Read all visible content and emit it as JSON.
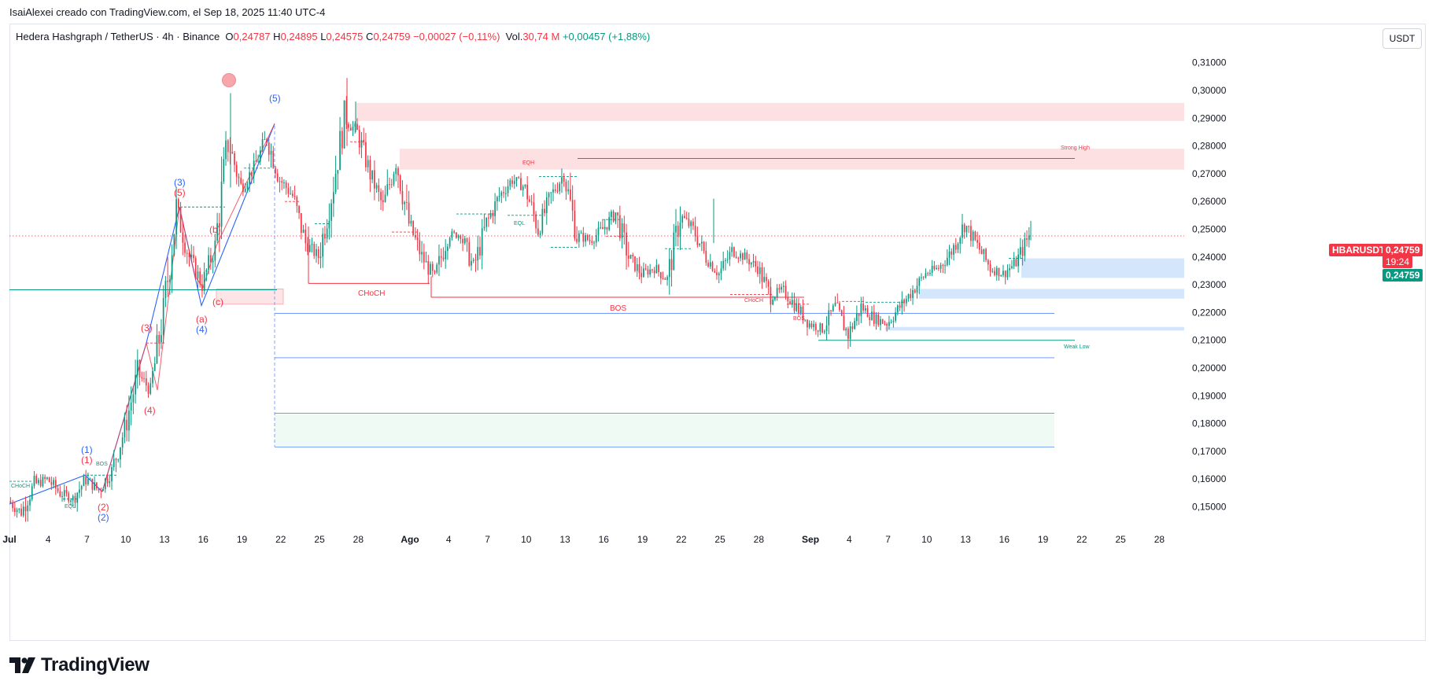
{
  "header": {
    "credit": "IsaiAlexei creado con TradingView.com, el Sep 18, 2025 11:40 UTC-4"
  },
  "legend": {
    "symbol": "Hedera Hashgraph / TetherUS · 4h · Binance",
    "open_label": "O",
    "open": "0,24787",
    "high_label": "H",
    "high": "0,24895",
    "low_label": "L",
    "low": "0,24575",
    "close_label": "C",
    "close": "0,24759",
    "change": "−0,00027 (−0,11%)",
    "vol_label": "Vol.",
    "vol": "30,74 M",
    "extra_change": "+0,00457 (+1,88%)"
  },
  "currency_button": "USDT",
  "price_tags": {
    "symbol_tag": "HBARUSDT",
    "last_price": "0,24759",
    "countdown": "19:24",
    "bid_price": "0,24759"
  },
  "brand": {
    "name": "TradingView"
  },
  "colors": {
    "up": "#089981",
    "down": "#f23645",
    "blue": "#2962ff",
    "supply_zone": "#fccbcd",
    "demand_zone": "#bbd9fb",
    "target_zone": "#e8f7ee"
  },
  "chart_data": {
    "type": "candlestick",
    "ylim": [
      0.14,
      0.318
    ],
    "y_ticks": [
      "0,31000",
      "0,30000",
      "0,29000",
      "0,28000",
      "0,27000",
      "0,26000",
      "0,25000",
      "0,24000",
      "0,23000",
      "0,22000",
      "0,21000",
      "0,20000",
      "0,19000",
      "0,18000",
      "0,17000",
      "0,16000",
      "0,15000"
    ],
    "x_ticks": [
      "Jul",
      "4",
      "7",
      "10",
      "13",
      "16",
      "19",
      "22",
      "25",
      "28",
      "Ago",
      "4",
      "7",
      "10",
      "13",
      "16",
      "19",
      "22",
      "25",
      "28",
      "Sep",
      "4",
      "7",
      "10",
      "13",
      "16",
      "19",
      "22",
      "25",
      "28"
    ],
    "approx_close_path": [
      [
        "Jul 1",
        0.152
      ],
      [
        "Jul 2",
        0.148
      ],
      [
        "Jul 3",
        0.158
      ],
      [
        "Jul 4",
        0.16
      ],
      [
        "Jul 5",
        0.155
      ],
      [
        "Jul 6",
        0.153
      ],
      [
        "Jul 7",
        0.16
      ],
      [
        "Jul 8",
        0.156
      ],
      [
        "Jul 9",
        0.163
      ],
      [
        "Jul 10",
        0.178
      ],
      [
        "Jul 11",
        0.198
      ],
      [
        "Jul 12",
        0.192
      ],
      [
        "Jul 13",
        0.22
      ],
      [
        "Jul 14",
        0.257
      ],
      [
        "Jul 15",
        0.24
      ],
      [
        "Jul 16",
        0.23
      ],
      [
        "Jul 17",
        0.244
      ],
      [
        "Jul 18",
        0.282
      ],
      [
        "Jul 19",
        0.265
      ],
      [
        "Jul 20",
        0.272
      ],
      [
        "Jul 21",
        0.283
      ],
      [
        "Jul 22",
        0.268
      ],
      [
        "Jul 23",
        0.262
      ],
      [
        "Jul 24",
        0.245
      ],
      [
        "Jul 25",
        0.24
      ],
      [
        "Jul 26",
        0.262
      ],
      [
        "Jul 27",
        0.29
      ],
      [
        "Jul 28",
        0.285
      ],
      [
        "Jul 29",
        0.27
      ],
      [
        "Jul 30",
        0.258
      ],
      [
        "Jul 31",
        0.275
      ],
      [
        "Ago 1",
        0.252
      ],
      [
        "Ago 2",
        0.24
      ],
      [
        "Ago 3",
        0.232
      ],
      [
        "Ago 4",
        0.248
      ],
      [
        "Ago 5",
        0.248
      ],
      [
        "Ago 6",
        0.236
      ],
      [
        "Ago 7",
        0.252
      ],
      [
        "Ago 8",
        0.262
      ],
      [
        "Ago 9",
        0.268
      ],
      [
        "Ago 10",
        0.265
      ],
      [
        "Ago 11",
        0.25
      ],
      [
        "Ago 12",
        0.262
      ],
      [
        "Ago 13",
        0.27
      ],
      [
        "Ago 14",
        0.248
      ],
      [
        "Ago 15",
        0.246
      ],
      [
        "Ago 16",
        0.25
      ],
      [
        "Ago 17",
        0.256
      ],
      [
        "Ago 18",
        0.24
      ],
      [
        "Ago 19",
        0.234
      ],
      [
        "Ago 20",
        0.236
      ],
      [
        "Ago 21",
        0.232
      ],
      [
        "Ago 22",
        0.255
      ],
      [
        "Ago 23",
        0.25
      ],
      [
        "Ago 24",
        0.24
      ],
      [
        "Ago 25",
        0.234
      ],
      [
        "Ago 26",
        0.242
      ],
      [
        "Ago 27",
        0.24
      ],
      [
        "Ago 28",
        0.236
      ],
      [
        "Ago 29",
        0.226
      ],
      [
        "Ago 30",
        0.228
      ],
      [
        "Ago 31",
        0.222
      ],
      [
        "Sep 1",
        0.216
      ],
      [
        "Sep 2",
        0.214
      ],
      [
        "Sep 3",
        0.222
      ],
      [
        "Sep 4",
        0.212
      ],
      [
        "Sep 5",
        0.222
      ],
      [
        "Sep 6",
        0.218
      ],
      [
        "Sep 7",
        0.216
      ],
      [
        "Sep 8",
        0.222
      ],
      [
        "Sep 9",
        0.228
      ],
      [
        "Sep 10",
        0.234
      ],
      [
        "Sep 11",
        0.236
      ],
      [
        "Sep 12",
        0.242
      ],
      [
        "Sep 13",
        0.252
      ],
      [
        "Sep 14",
        0.244
      ],
      [
        "Sep 15",
        0.236
      ],
      [
        "Sep 16",
        0.234
      ],
      [
        "Sep 17",
        0.238
      ],
      [
        "Sep 18",
        0.24759
      ]
    ],
    "levels": [
      {
        "label": "CHoCH",
        "price": 0.2305
      },
      {
        "label": "BOS",
        "price": 0.2255
      },
      {
        "label": "Strong High",
        "price": 0.2755
      },
      {
        "label": "Weak Low",
        "price": 0.21
      }
    ],
    "zones": [
      {
        "kind": "supply",
        "from": 0.289,
        "to": 0.2955
      },
      {
        "kind": "supply",
        "from": 0.2715,
        "to": 0.279
      },
      {
        "kind": "demand",
        "from": 0.2325,
        "to": 0.2395
      },
      {
        "kind": "demand",
        "from": 0.225,
        "to": 0.2285
      },
      {
        "kind": "demand",
        "from": 0.2135,
        "to": 0.2148
      },
      {
        "kind": "target",
        "from": 0.1715,
        "to": 0.1835
      }
    ],
    "blue_lines": [
      0.2197,
      0.2037,
      0.1837,
      0.1715
    ],
    "teal_line": 0.2282,
    "annotations": [
      {
        "text": "CHoCH",
        "color": "up"
      },
      {
        "text": "EQL",
        "color": "up"
      },
      {
        "text": "BOS",
        "color": "up"
      },
      {
        "text": "EQH",
        "color": "down"
      },
      {
        "text": "EQL",
        "color": "up"
      },
      {
        "text": "CHoCH",
        "color": "down"
      },
      {
        "text": "BOS",
        "color": "down"
      }
    ],
    "wave_labels": [
      {
        "text": "(1)",
        "color": "blue"
      },
      {
        "text": "(1)",
        "color": "down"
      },
      {
        "text": "(2)",
        "color": "down"
      },
      {
        "text": "(2)",
        "color": "blue"
      },
      {
        "text": "(3)",
        "color": "down"
      },
      {
        "text": "(4)",
        "color": "down"
      },
      {
        "text": "(3)",
        "color": "blue"
      },
      {
        "text": "(5)",
        "color": "down"
      },
      {
        "text": "(b)",
        "color": "down"
      },
      {
        "text": "(c)",
        "color": "down"
      },
      {
        "text": "(a)",
        "color": "down"
      },
      {
        "text": "(4)",
        "color": "blue"
      },
      {
        "text": "(5)",
        "color": "blue"
      }
    ]
  }
}
